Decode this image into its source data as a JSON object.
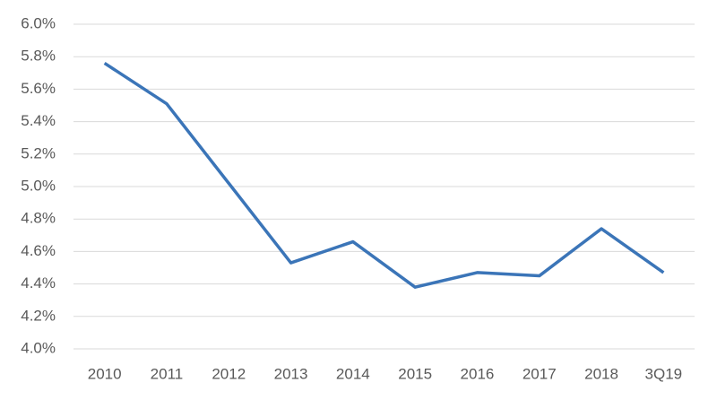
{
  "chart_data": {
    "type": "line",
    "categories": [
      "2010",
      "2011",
      "2012",
      "2013",
      "2014",
      "2015",
      "2016",
      "2017",
      "2018",
      "3Q19"
    ],
    "series": [
      {
        "color": "#3b75b8",
        "values": [
          5.76,
          5.51,
          5.02,
          4.53,
          4.66,
          4.38,
          4.47,
          4.45,
          4.74,
          4.47
        ]
      }
    ],
    "ylim": [
      4.0,
      6.0
    ],
    "yticks": [
      {
        "value": 4.0,
        "label": "4.0%"
      },
      {
        "value": 4.2,
        "label": "4.2%"
      },
      {
        "value": 4.4,
        "label": "4.4%"
      },
      {
        "value": 4.6,
        "label": "4.6%"
      },
      {
        "value": 4.8,
        "label": "4.8%"
      },
      {
        "value": 5.0,
        "label": "5.0%"
      },
      {
        "value": 5.2,
        "label": "5.2%"
      },
      {
        "value": 5.4,
        "label": "5.4%"
      },
      {
        "value": 5.6,
        "label": "5.6%"
      },
      {
        "value": 5.8,
        "label": "5.8%"
      },
      {
        "value": 6.0,
        "label": "6.0%"
      }
    ],
    "grid": true
  }
}
